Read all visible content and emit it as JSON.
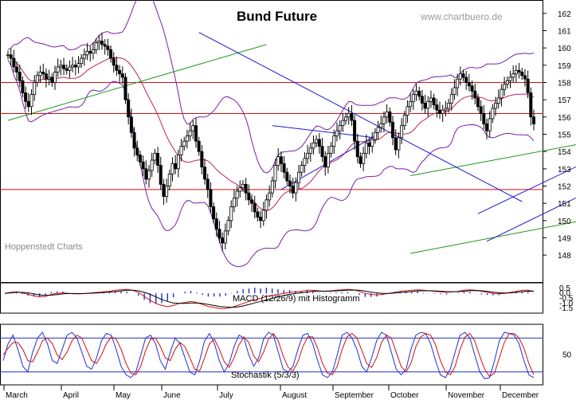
{
  "chart_data": {
    "type": "candlestick",
    "title": "Bund Future",
    "source": "www.chartbuero.de",
    "credit": "Hoppenstedt Charts",
    "x_labels": [
      "March",
      "April",
      "May",
      "June",
      "July",
      "August",
      "September",
      "October",
      "November",
      "December"
    ],
    "price_axis": {
      "ticks": [
        "162",
        "161",
        "160",
        "159",
        "158",
        "157",
        "156",
        "155",
        "154",
        "153",
        "152",
        "151",
        "150",
        "149",
        "148"
      ],
      "ylim": [
        147.5,
        162.5
      ]
    },
    "horizontal_lines": [
      158.0,
      156.2,
      151.8
    ],
    "trendlines": [
      {
        "name": "support-green-upper",
        "points": [
          [
            0,
            155.8
          ],
          [
            88,
            160.2
          ]
        ],
        "color": "#1a9a1a"
      },
      {
        "name": "channel-green-upper",
        "points": [
          [
            137,
            152.6
          ],
          [
            417,
            161.5
          ]
        ],
        "color": "#1a9a1a"
      },
      {
        "name": "channel-green-lower",
        "points": [
          [
            137,
            148.1
          ],
          [
            417,
            157.2
          ]
        ],
        "color": "#1a9a1a"
      },
      {
        "name": "downtrend-blue",
        "points": [
          [
            65,
            160.9
          ],
          [
            175,
            151.1
          ]
        ],
        "color": "#1a1ad0"
      },
      {
        "name": "blue-channel-upper",
        "points": [
          [
            160,
            150.4
          ],
          [
            283,
            160.4
          ]
        ],
        "color": "#1a1ad0"
      },
      {
        "name": "blue-channel-lower",
        "points": [
          [
            163,
            148.8
          ],
          [
            250,
            156.0
          ]
        ],
        "color": "#1a1ad0"
      },
      {
        "name": "triangle-upper",
        "points": [
          [
            90,
            155.5
          ],
          [
            125,
            154.8
          ]
        ],
        "color": "#1a1ad0"
      },
      {
        "name": "triangle-lower",
        "points": [
          [
            93,
            151.8
          ],
          [
            125,
            154.9
          ]
        ],
        "color": "#1a1ad0"
      }
    ],
    "price_series": [
      159.6,
      159.4,
      158.9,
      158.6,
      158.1,
      157.4,
      156.9,
      156.6,
      157.3,
      158.0,
      158.4,
      158.6,
      158.5,
      158.2,
      158.3,
      158.0,
      158.6,
      158.9,
      159.0,
      158.8,
      158.7,
      158.9,
      159.0,
      158.9,
      159.1,
      159.4,
      159.6,
      159.8,
      159.7,
      159.9,
      160.3,
      160.4,
      160.2,
      160.1,
      159.9,
      159.4,
      159.0,
      158.7,
      158.5,
      158.3,
      157.0,
      156.0,
      155.1,
      154.2,
      153.8,
      153.4,
      153.0,
      152.4,
      152.9,
      153.5,
      153.9,
      153.2,
      152.1,
      151.4,
      152.0,
      152.7,
      153.3,
      153.0,
      153.8,
      154.3,
      154.6,
      154.9,
      155.2,
      155.5,
      154.6,
      154.0,
      153.1,
      152.4,
      151.8,
      150.8,
      150.1,
      149.5,
      149.0,
      148.7,
      149.4,
      150.0,
      150.8,
      151.3,
      151.7,
      151.9,
      152.1,
      151.6,
      151.2,
      151.0,
      150.5,
      150.2,
      150.0,
      150.6,
      151.2,
      151.6,
      152.3,
      153.2,
      153.7,
      153.3,
      152.8,
      152.3,
      152.0,
      151.6,
      152.2,
      152.8,
      153.2,
      153.6,
      153.9,
      154.2,
      154.5,
      154.7,
      154.3,
      153.7,
      153.1,
      153.9,
      154.3,
      154.9,
      155.2,
      155.5,
      155.8,
      156.0,
      156.2,
      155.8,
      154.6,
      153.7,
      153.3,
      153.9,
      154.5,
      154.3,
      154.7,
      155.1,
      155.4,
      155.6,
      156.0,
      156.3,
      155.7,
      154.8,
      154.1,
      154.8,
      155.5,
      156.1,
      156.6,
      156.9,
      157.3,
      157.5,
      157.2,
      156.8,
      156.5,
      156.9,
      157.1,
      156.7,
      156.4,
      156.2,
      156.4,
      156.5,
      156.8,
      157.3,
      157.7,
      158.2,
      158.5,
      158.3,
      158.0,
      157.8,
      157.5,
      157.1,
      156.6,
      156.2,
      155.6,
      155.2,
      155.9,
      156.5,
      156.8,
      157.1,
      157.6,
      157.9,
      158.1,
      158.3,
      158.5,
      158.7,
      158.6,
      158.4,
      158.2,
      157.4,
      156.0,
      155.6
    ],
    "macd": {
      "label": "MACD (12/26/9) mit Histogramm",
      "ticks": [
        "0.5",
        "0.0",
        "-0.5",
        "-1.0",
        "-1.5"
      ],
      "ylim": [
        -1.8,
        0.8
      ],
      "macd_series": [
        0.0,
        0.1,
        0.15,
        0.05,
        -0.1,
        -0.25,
        -0.35,
        -0.3,
        -0.1,
        0.0,
        0.05,
        0.0,
        -0.05,
        -0.05,
        0.0,
        0.05,
        0.1,
        0.15,
        0.2,
        0.3,
        0.35,
        0.4,
        0.3,
        0.1,
        -0.3,
        -0.7,
        -1.0,
        -1.2,
        -1.3,
        -1.2,
        -1.0,
        -0.9,
        -0.8,
        -0.9,
        -1.1,
        -1.3,
        -1.4,
        -1.5,
        -1.5,
        -1.4,
        -1.2,
        -1.0,
        -0.8,
        -0.6,
        -0.5,
        -0.3,
        -0.2,
        -0.1,
        0.0,
        0.1,
        0.15,
        0.2,
        0.3,
        0.3,
        0.25,
        0.2,
        0.25,
        0.3,
        0.35,
        0.4,
        0.35,
        0.2,
        0.0,
        -0.1,
        -0.15,
        -0.1,
        0.0,
        0.1,
        0.2,
        0.25,
        0.3,
        0.35,
        0.3,
        0.25,
        0.2,
        0.15,
        0.1,
        0.15,
        0.2,
        0.3,
        0.35,
        0.3,
        0.2,
        0.1,
        0.0,
        -0.05,
        0.0,
        0.1,
        0.2,
        0.3,
        0.3,
        0.2
      ],
      "signal_series": [
        0.0,
        0.05,
        0.1,
        0.1,
        0.05,
        -0.05,
        -0.15,
        -0.2,
        -0.18,
        -0.12,
        -0.05,
        -0.02,
        -0.02,
        -0.02,
        -0.01,
        0.01,
        0.04,
        0.08,
        0.12,
        0.18,
        0.24,
        0.3,
        0.3,
        0.25,
        0.1,
        -0.1,
        -0.35,
        -0.6,
        -0.8,
        -0.95,
        -1.0,
        -1.0,
        -0.95,
        -0.95,
        -1.0,
        -1.1,
        -1.2,
        -1.3,
        -1.35,
        -1.38,
        -1.35,
        -1.25,
        -1.1,
        -0.95,
        -0.8,
        -0.65,
        -0.5,
        -0.35,
        -0.2,
        -0.1,
        0.0,
        0.05,
        0.12,
        0.2,
        0.22,
        0.22,
        0.22,
        0.25,
        0.28,
        0.32,
        0.33,
        0.3,
        0.22,
        0.12,
        0.05,
        0.0,
        0.0,
        0.03,
        0.08,
        0.13,
        0.18,
        0.24,
        0.26,
        0.26,
        0.24,
        0.21,
        0.17,
        0.16,
        0.17,
        0.21,
        0.26,
        0.28,
        0.26,
        0.2,
        0.12,
        0.06,
        0.03,
        0.05,
        0.1,
        0.17,
        0.22,
        0.21
      ]
    },
    "stochastic": {
      "label": "Stochastik (5/3/3)",
      "ticks": [
        "50"
      ],
      "ylim": [
        0,
        100
      ],
      "upper_level": 80,
      "lower_level": 20,
      "k_series": [
        40,
        70,
        85,
        60,
        30,
        20,
        55,
        80,
        90,
        70,
        40,
        35,
        60,
        85,
        90,
        80,
        55,
        30,
        25,
        45,
        75,
        88,
        85,
        60,
        30,
        15,
        10,
        20,
        50,
        80,
        85,
        70,
        40,
        25,
        55,
        80,
        70,
        45,
        20,
        15,
        40,
        75,
        88,
        70,
        40,
        20,
        35,
        65,
        85,
        80,
        50,
        30,
        45,
        78,
        90,
        85,
        55,
        25,
        20,
        30,
        60,
        85,
        88,
        70,
        40,
        15,
        10,
        20,
        50,
        85,
        90,
        80,
        60,
        30,
        20,
        45,
        75,
        90,
        85,
        55,
        25,
        15,
        25,
        60,
        85,
        90,
        88,
        70,
        40,
        15,
        10,
        25,
        55,
        85,
        90,
        80,
        50,
        20,
        8,
        10,
        40,
        75,
        90,
        88,
        85,
        70,
        40,
        15,
        10
      ],
      "d_series": [
        50,
        62,
        72,
        72,
        60,
        40,
        38,
        55,
        75,
        80,
        70,
        50,
        42,
        55,
        75,
        85,
        80,
        60,
        40,
        35,
        50,
        70,
        82,
        78,
        60,
        35,
        18,
        15,
        30,
        58,
        78,
        80,
        65,
        45,
        40,
        60,
        72,
        65,
        45,
        25,
        22,
        45,
        70,
        78,
        60,
        38,
        28,
        45,
        68,
        82,
        72,
        48,
        38,
        55,
        78,
        88,
        75,
        48,
        28,
        22,
        38,
        65,
        82,
        82,
        62,
        35,
        18,
        15,
        30,
        60,
        82,
        88,
        80,
        58,
        35,
        28,
        45,
        72,
        85,
        80,
        55,
        30,
        20,
        35,
        65,
        82,
        88,
        85,
        68,
        40,
        20,
        15,
        30,
        60,
        82,
        88,
        75,
        48,
        25,
        12,
        18,
        45,
        72,
        88,
        88,
        80,
        62,
        35,
        15
      ]
    }
  }
}
